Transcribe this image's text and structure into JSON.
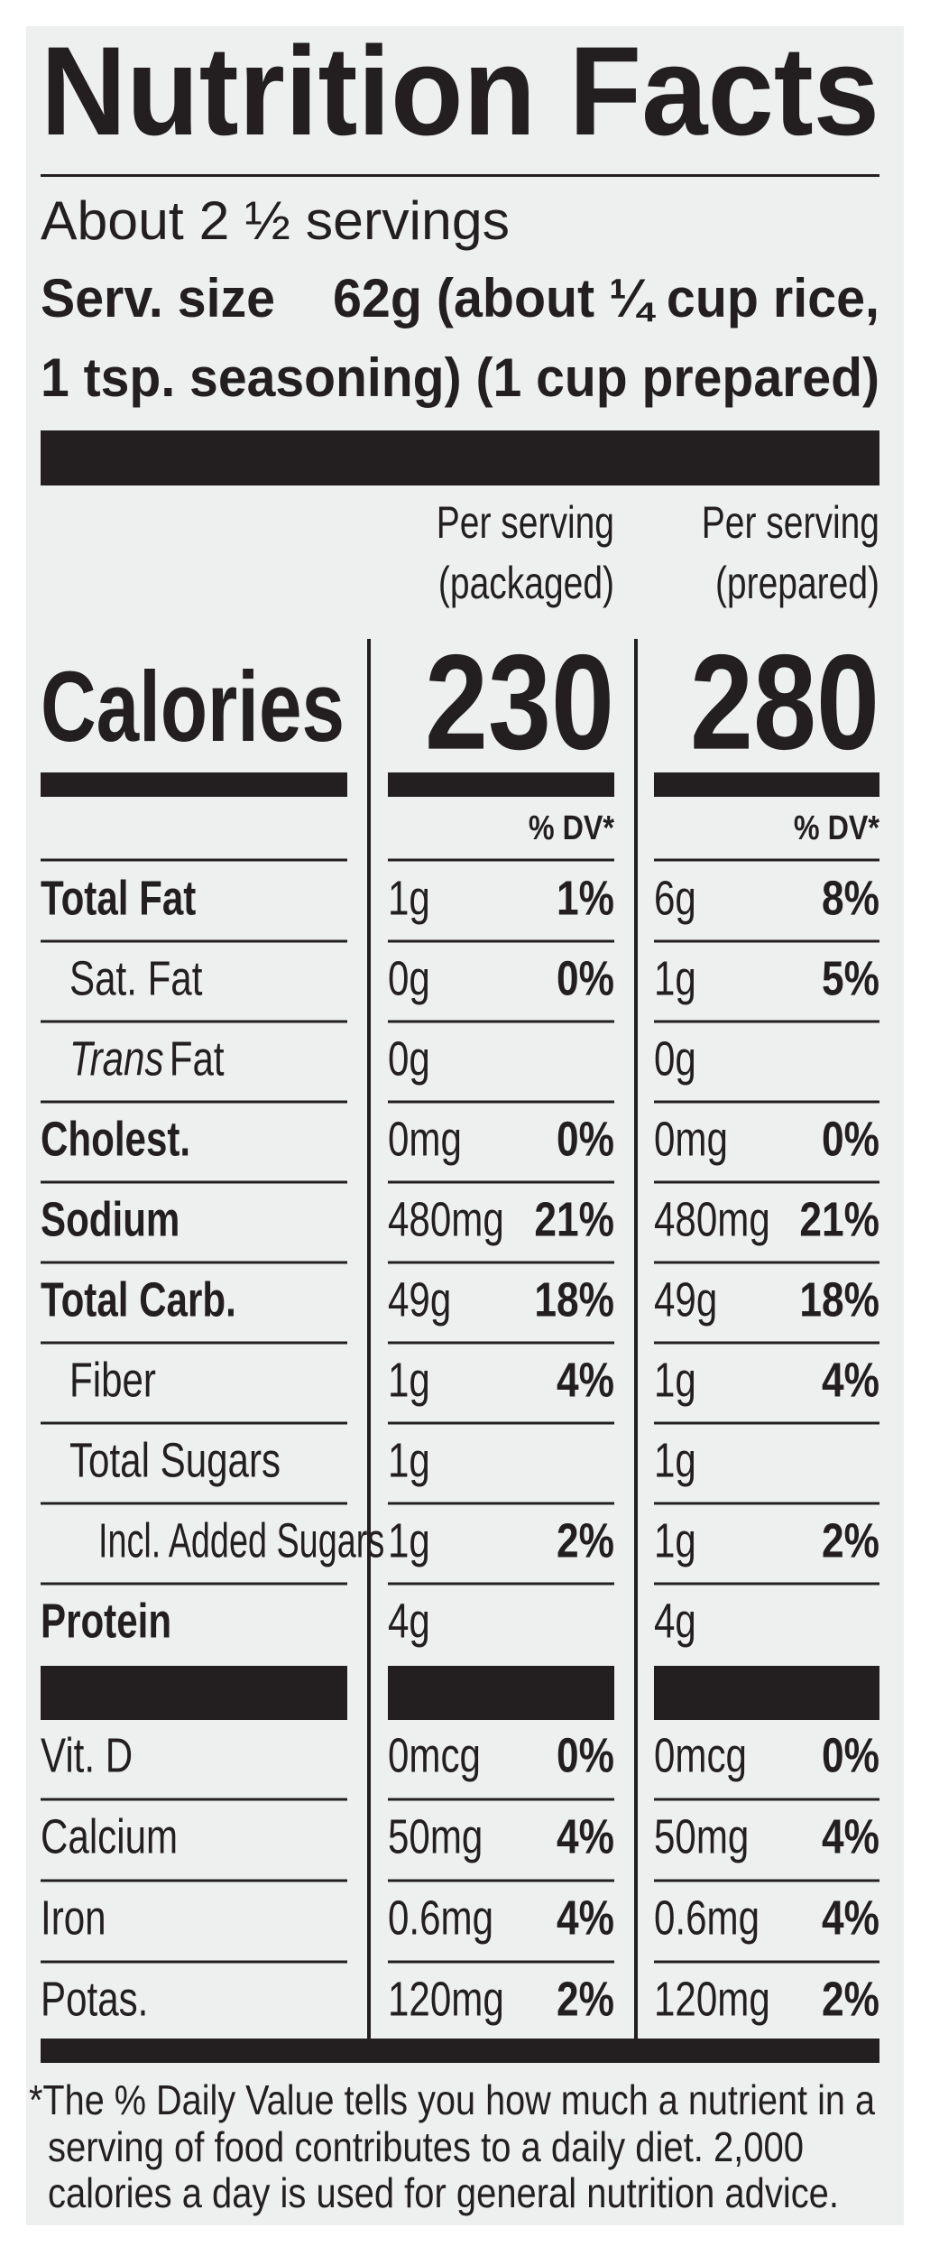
{
  "title": "Nutrition Facts",
  "servings": "About 2 ½ servings",
  "serving_size": {
    "label": "Serv. size",
    "lines": [
      "62g (about ¼ cup rice,",
      "1 tsp. seasoning) (1 cup prepared)"
    ]
  },
  "calories_label": "Calories",
  "columns": [
    {
      "header": [
        "Per serving",
        "(packaged)"
      ],
      "calories": "230",
      "dv_header": "% DV*"
    },
    {
      "header": [
        "Per serving",
        "(prepared)"
      ],
      "calories": "280",
      "dv_header": "% DV*"
    }
  ],
  "nutrients": [
    {
      "name": "Total Fat",
      "bold": true,
      "indent": 0,
      "values": [
        [
          "1g",
          "1%"
        ],
        [
          "6g",
          "8%"
        ]
      ]
    },
    {
      "name": "Sat. Fat",
      "bold": false,
      "indent": 1,
      "values": [
        [
          "0g",
          "0%"
        ],
        [
          "1g",
          "5%"
        ]
      ]
    },
    {
      "italic_prefix": "Trans",
      "name": "Fat",
      "bold": false,
      "indent": 1,
      "values": [
        [
          "0g"
        ],
        [
          "0g"
        ]
      ]
    },
    {
      "name": "Cholest.",
      "bold": true,
      "indent": 0,
      "values": [
        [
          "0mg",
          "0%"
        ],
        [
          "0mg",
          "0%"
        ]
      ]
    },
    {
      "name": "Sodium",
      "bold": true,
      "indent": 0,
      "values": [
        [
          "480mg",
          "21%"
        ],
        [
          "480mg",
          "21%"
        ]
      ]
    },
    {
      "name": "Total Carb.",
      "bold": true,
      "indent": 0,
      "values": [
        [
          "49g",
          "18%"
        ],
        [
          "49g",
          "18%"
        ]
      ]
    },
    {
      "name": "Fiber",
      "bold": false,
      "indent": 1,
      "values": [
        [
          "1g",
          "4%"
        ],
        [
          "1g",
          "4%"
        ]
      ]
    },
    {
      "name": "Total Sugars",
      "bold": false,
      "indent": 1,
      "values": [
        [
          "1g"
        ],
        [
          "1g"
        ]
      ]
    },
    {
      "name": "Incl. Added Sugars",
      "bold": false,
      "indent": 2,
      "values": [
        [
          "1g",
          "2%"
        ],
        [
          "1g",
          "2%"
        ]
      ]
    },
    {
      "name": "Protein",
      "bold": true,
      "indent": 0,
      "values": [
        [
          "4g"
        ],
        [
          "4g"
        ]
      ]
    }
  ],
  "vitamins": [
    {
      "name": "Vit. D",
      "values": [
        [
          "0mcg",
          "0%"
        ],
        [
          "0mcg",
          "0%"
        ]
      ]
    },
    {
      "name": "Calcium",
      "values": [
        [
          "50mg",
          "4%"
        ],
        [
          "50mg",
          "4%"
        ]
      ]
    },
    {
      "name": "Iron",
      "values": [
        [
          "0.6mg",
          "4%"
        ],
        [
          "0.6mg",
          "4%"
        ]
      ]
    },
    {
      "name": "Potas.",
      "values": [
        [
          "120mg",
          "2%"
        ],
        [
          "120mg",
          "2%"
        ]
      ]
    }
  ],
  "footnote": [
    "*The % Daily Value tells you how much a nutrient in a",
    "serving of food contributes to a daily diet. 2,000",
    "calories a day is used for general nutrition advice."
  ]
}
